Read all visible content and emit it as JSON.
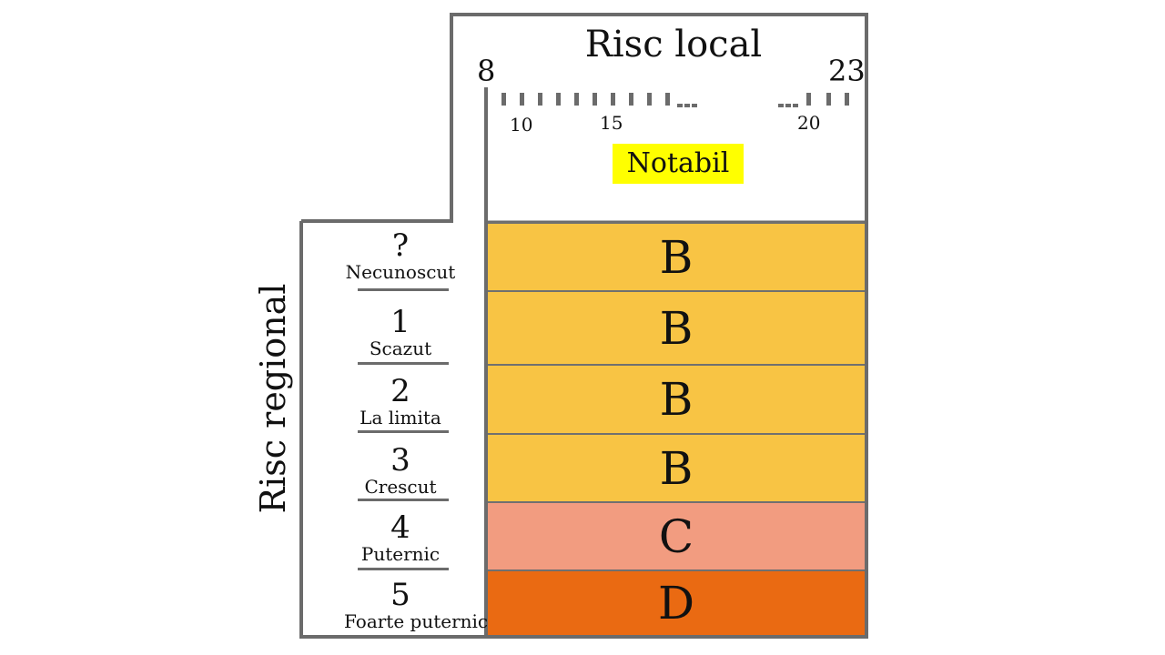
{
  "header": {
    "title": "Risc local",
    "scale_min": "8",
    "scale_max": "23",
    "tick_labels": [
      "10",
      "15",
      "20"
    ],
    "badge": "Notabil",
    "badge_color": "#ffff00"
  },
  "sidebar": {
    "title": "Risc regional",
    "levels": [
      {
        "num": "?",
        "name": "Necunoscut"
      },
      {
        "num": "1",
        "name": "Scazut"
      },
      {
        "num": "2",
        "name": "La limita"
      },
      {
        "num": "3",
        "name": "Crescut"
      },
      {
        "num": "4",
        "name": "Puternic"
      },
      {
        "num": "5",
        "name": "Foarte puternic"
      }
    ]
  },
  "grid": {
    "cells": [
      {
        "letter": "B",
        "color": "#f8c444"
      },
      {
        "letter": "B",
        "color": "#f8c444"
      },
      {
        "letter": "B",
        "color": "#f8c444"
      },
      {
        "letter": "B",
        "color": "#f8c444"
      },
      {
        "letter": "C",
        "color": "#f29c80"
      },
      {
        "letter": "D",
        "color": "#ea6a12"
      }
    ]
  },
  "colors": {
    "border": "#6b6b6b"
  }
}
